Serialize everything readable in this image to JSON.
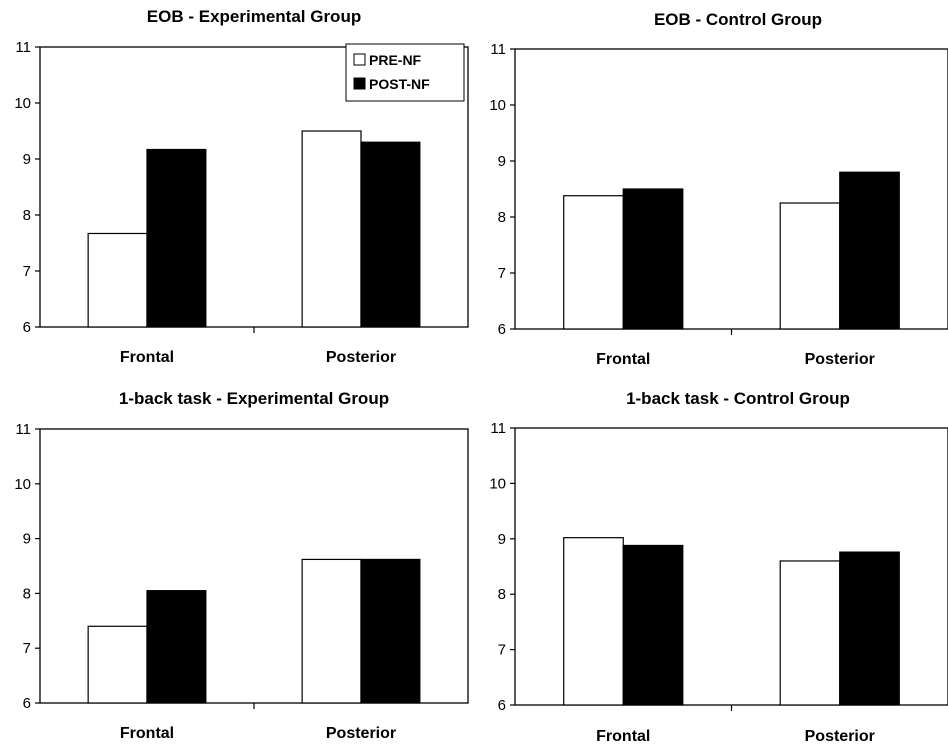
{
  "chart_data": [
    {
      "type": "bar",
      "title": "EOB - Experimental Group",
      "categories": [
        "Frontal",
        "Posterior"
      ],
      "series": [
        {
          "name": "PRE-NF",
          "values": [
            7.67,
            9.5
          ]
        },
        {
          "name": "POST-NF",
          "values": [
            9.17,
            9.3
          ]
        }
      ],
      "ylim": [
        6,
        11
      ],
      "yticks": [
        "6",
        "7",
        "8",
        "9",
        "10",
        "11"
      ],
      "legend": "top-right",
      "colors": {
        "PRE-NF": "#ffffff",
        "POST-NF": "#000000"
      },
      "grid": false
    },
    {
      "type": "bar",
      "title": "EOB - Control Group",
      "categories": [
        "Frontal",
        "Posterior"
      ],
      "series": [
        {
          "name": "PRE-NF",
          "values": [
            8.38,
            8.25
          ]
        },
        {
          "name": "POST-NF",
          "values": [
            8.5,
            8.8
          ]
        }
      ],
      "ylim": [
        6,
        11
      ],
      "yticks": [
        "6",
        "7",
        "8",
        "9",
        "10",
        "11"
      ],
      "colors": {
        "PRE-NF": "#ffffff",
        "POST-NF": "#000000"
      },
      "grid": false
    },
    {
      "type": "bar",
      "title": "1-back task - Experimental Group",
      "categories": [
        "Frontal",
        "Posterior"
      ],
      "series": [
        {
          "name": "PRE-NF",
          "values": [
            7.4,
            8.62
          ]
        },
        {
          "name": "POST-NF",
          "values": [
            8.05,
            8.62
          ]
        }
      ],
      "ylim": [
        6,
        11
      ],
      "yticks": [
        "6",
        "7",
        "8",
        "9",
        "10",
        "11"
      ],
      "colors": {
        "PRE-NF": "#ffffff",
        "POST-NF": "#000000"
      },
      "grid": false
    },
    {
      "type": "bar",
      "title": "1-back task - Control Group",
      "categories": [
        "Frontal",
        "Posterior"
      ],
      "series": [
        {
          "name": "PRE-NF",
          "values": [
            9.02,
            8.6
          ]
        },
        {
          "name": "POST-NF",
          "values": [
            8.88,
            8.76
          ]
        }
      ],
      "ylim": [
        6,
        11
      ],
      "yticks": [
        "6",
        "7",
        "8",
        "9",
        "10",
        "11"
      ],
      "colors": {
        "PRE-NF": "#ffffff",
        "POST-NF": "#000000"
      },
      "grid": false
    }
  ]
}
